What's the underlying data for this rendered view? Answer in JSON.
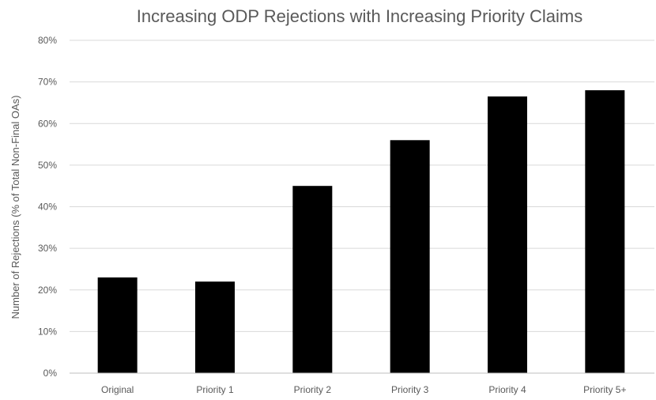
{
  "chart_data": {
    "type": "bar",
    "title": "Increasing ODP Rejections with Increasing Priority Claims",
    "xlabel": "",
    "ylabel": "Number of Rejections (% of Total Non-Final OAs)",
    "categories": [
      "Original",
      "Priority 1",
      "Priority 2",
      "Priority 3",
      "Priority 4",
      "Priority 5+"
    ],
    "values": [
      23,
      22,
      45,
      56,
      66.5,
      68
    ],
    "ylim": [
      0,
      80
    ],
    "yticks": [
      "0%",
      "10%",
      "20%",
      "30%",
      "40%",
      "50%",
      "60%",
      "70%",
      "80%"
    ],
    "grid": true,
    "legend": "none",
    "colors": {
      "bar": "#000000",
      "grid": "#d9d9d9",
      "text": "#595959"
    }
  }
}
